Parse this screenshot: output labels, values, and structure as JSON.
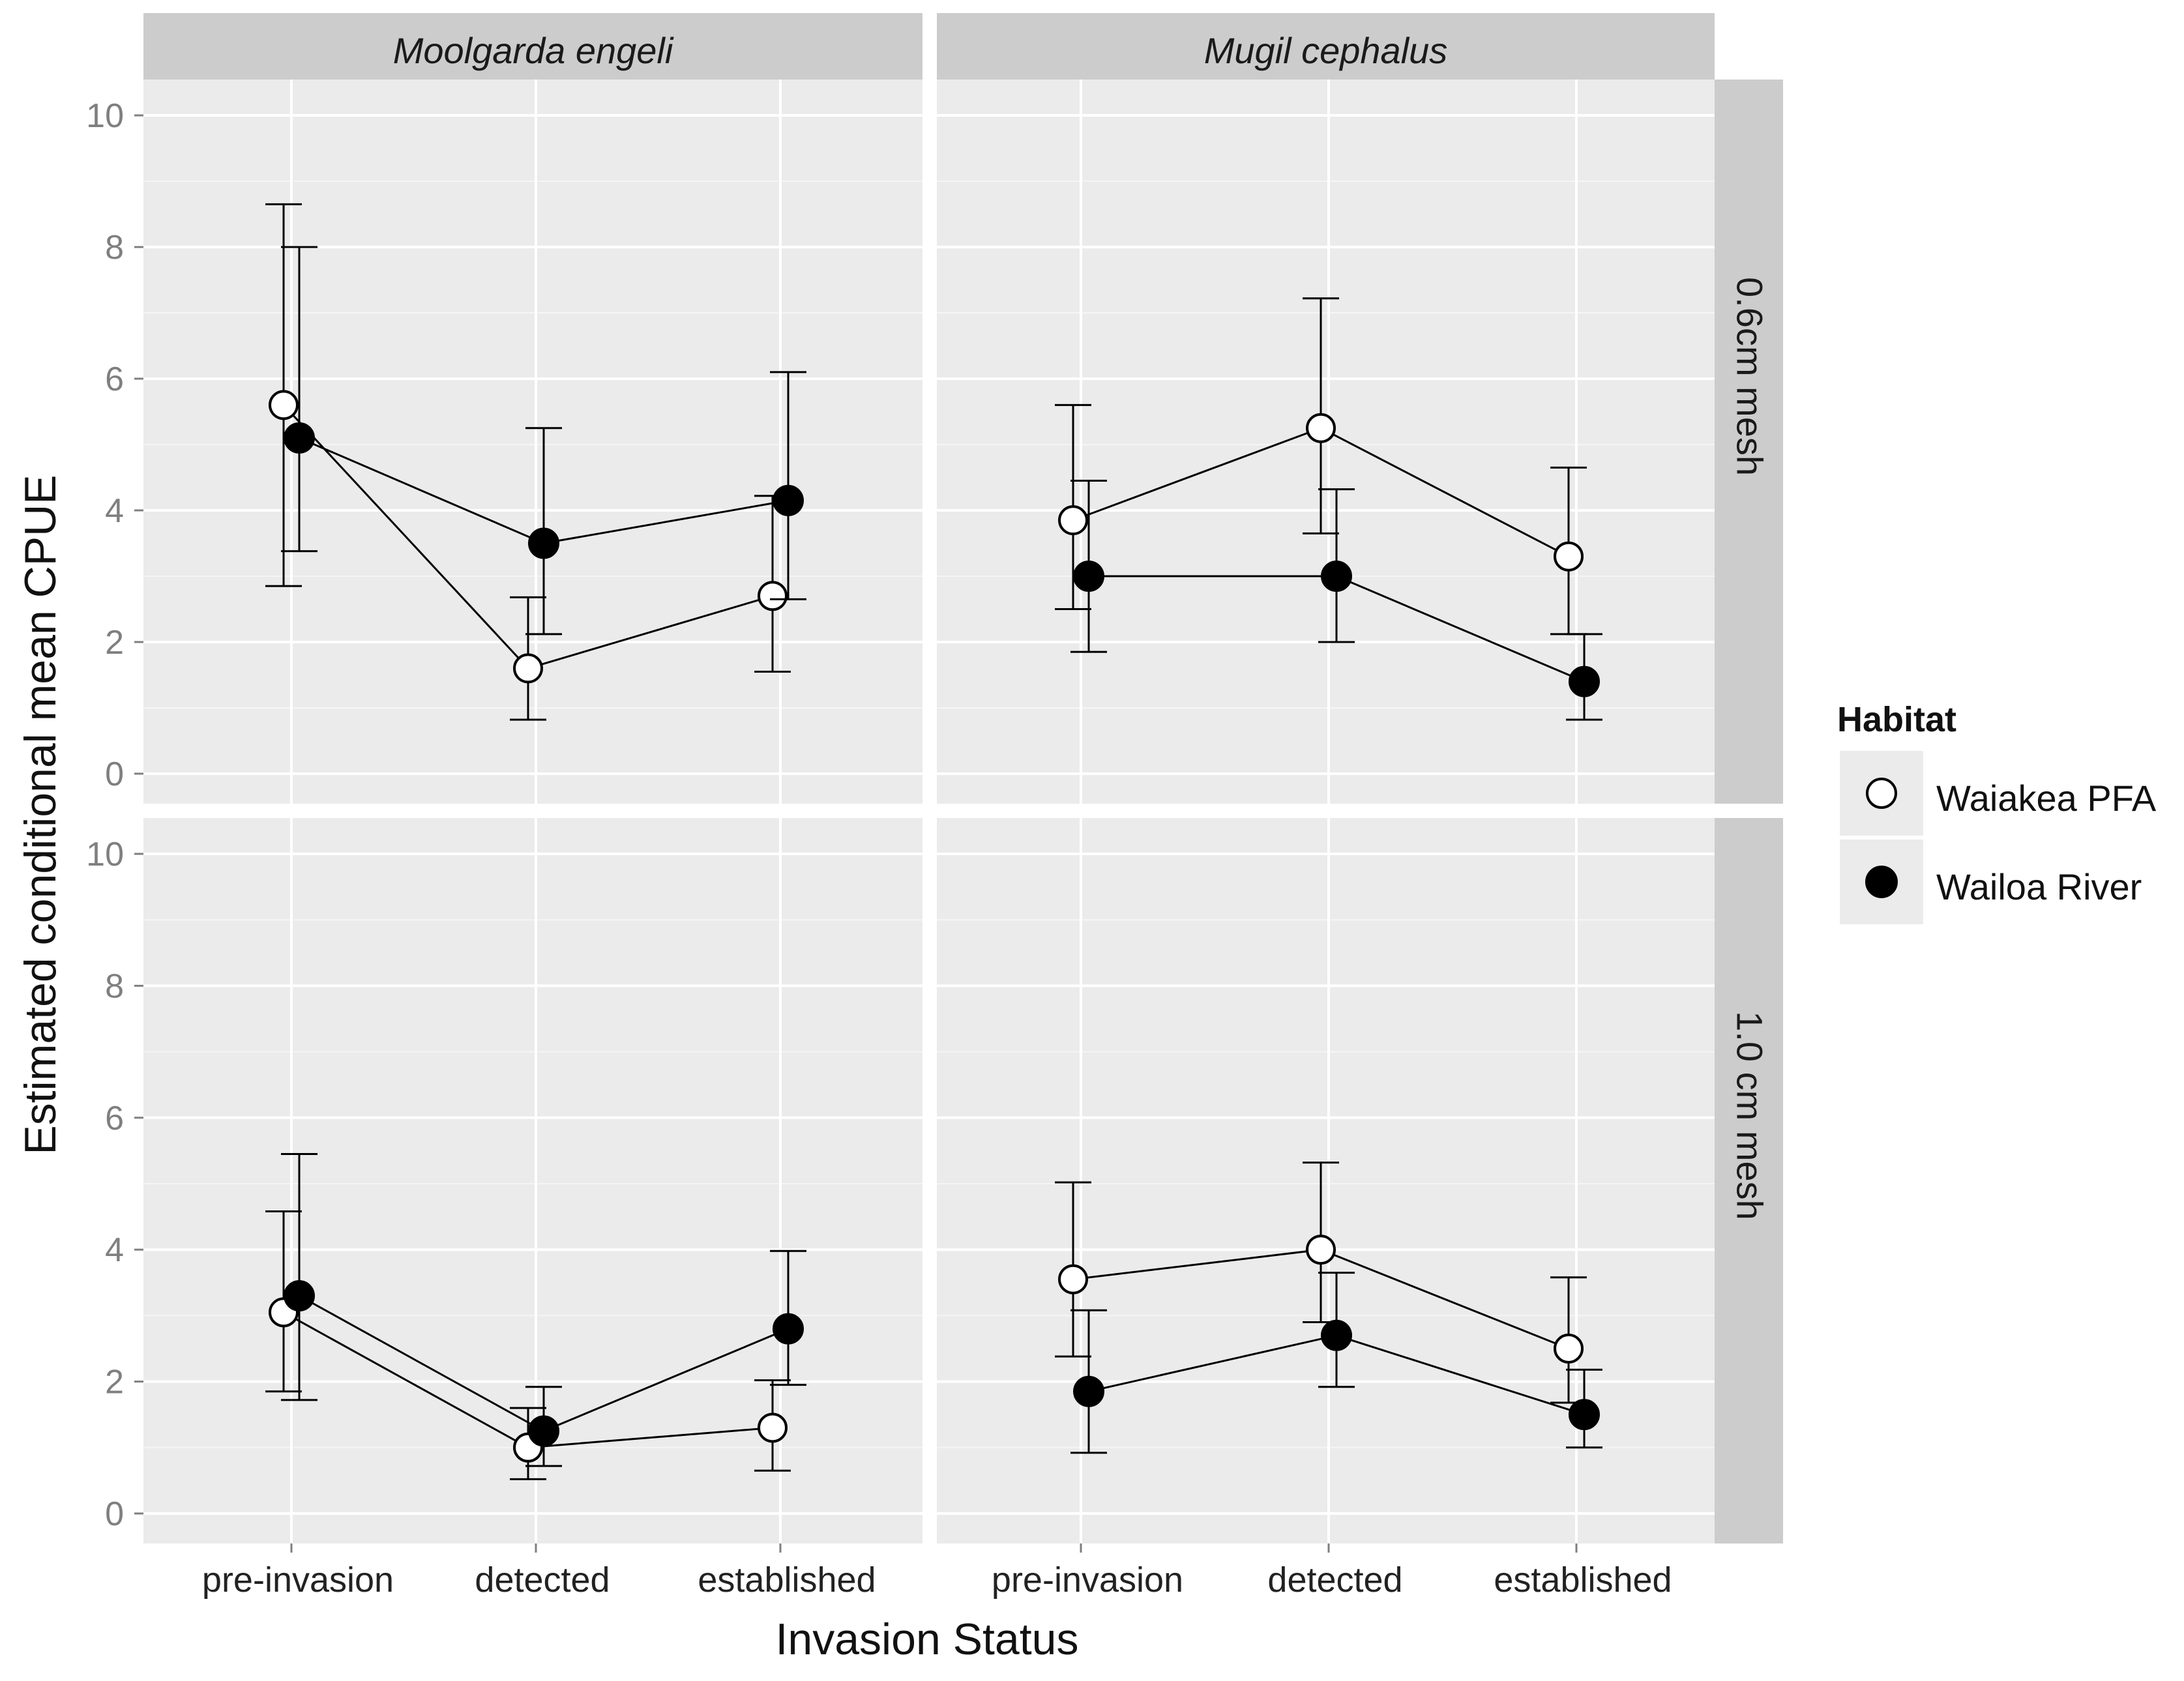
{
  "chart_data": {
    "type": "line",
    "xlabel": "Invasion Status",
    "ylabel": "Estimated conditional mean CPUE",
    "categories": [
      "pre-invasion",
      "detected",
      "established"
    ],
    "ylim": [
      0,
      10
    ],
    "yticks": [
      "0",
      "2",
      "4",
      "6",
      "8",
      "10"
    ],
    "grid": true,
    "legend": {
      "title": "Habitat",
      "position": "right",
      "items": [
        {
          "label": "Waiakea PFA",
          "marker": "open-circle"
        },
        {
          "label": "Wailoa River",
          "marker": "filled-circle"
        }
      ]
    },
    "column_strips": [
      "Moolgarda engeli",
      "Mugil cephalus"
    ],
    "row_strips": [
      "0.6cm mesh",
      "1.0 cm mesh"
    ],
    "panels": [
      {
        "col": 0,
        "row": 0,
        "series": [
          {
            "name": "Waiakea PFA",
            "values": [
              5.6,
              1.6,
              2.7
            ],
            "lower": [
              2.85,
              0.82,
              1.55
            ],
            "upper": [
              8.65,
              2.68,
              4.22
            ]
          },
          {
            "name": "Wailoa River",
            "values": [
              5.1,
              3.5,
              4.15
            ],
            "lower": [
              3.38,
              2.12,
              2.65
            ],
            "upper": [
              8.0,
              5.25,
              6.1
            ]
          }
        ]
      },
      {
        "col": 1,
        "row": 0,
        "series": [
          {
            "name": "Waiakea PFA",
            "values": [
              3.85,
              5.25,
              3.3
            ],
            "lower": [
              2.5,
              3.65,
              2.12
            ],
            "upper": [
              5.6,
              7.22,
              4.65
            ]
          },
          {
            "name": "Wailoa River",
            "values": [
              3.0,
              3.0,
              1.4
            ],
            "lower": [
              1.85,
              2.0,
              0.82
            ],
            "upper": [
              4.45,
              4.32,
              2.12
            ]
          }
        ]
      },
      {
        "col": 0,
        "row": 1,
        "series": [
          {
            "name": "Waiakea PFA",
            "values": [
              3.05,
              1.0,
              1.3
            ],
            "lower": [
              1.85,
              0.52,
              0.65
            ],
            "upper": [
              4.58,
              1.6,
              2.02
            ]
          },
          {
            "name": "Wailoa River",
            "values": [
              3.3,
              1.25,
              2.8
            ],
            "lower": [
              1.72,
              0.72,
              1.95
            ],
            "upper": [
              5.45,
              1.92,
              3.98
            ]
          }
        ]
      },
      {
        "col": 1,
        "row": 1,
        "series": [
          {
            "name": "Waiakea PFA",
            "values": [
              3.55,
              4.0,
              2.5
            ],
            "lower": [
              2.38,
              2.9,
              1.68
            ],
            "upper": [
              5.02,
              5.32,
              3.58
            ]
          },
          {
            "name": "Wailoa River",
            "values": [
              1.85,
              2.7,
              1.5
            ],
            "lower": [
              0.92,
              1.92,
              1.0
            ],
            "upper": [
              3.08,
              3.65,
              2.18
            ]
          }
        ]
      }
    ]
  }
}
